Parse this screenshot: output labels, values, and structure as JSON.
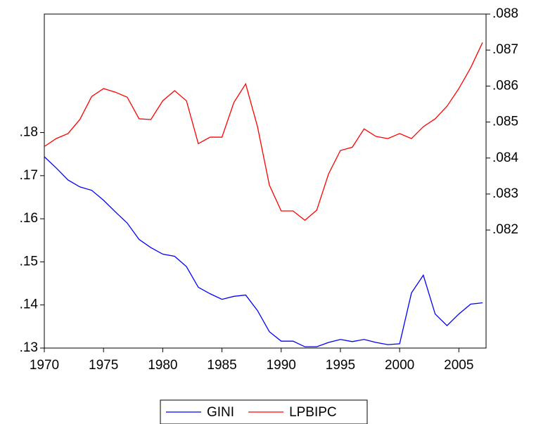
{
  "chart_data": {
    "type": "line",
    "x": [
      1970,
      1971,
      1972,
      1973,
      1974,
      1975,
      1976,
      1977,
      1978,
      1979,
      1980,
      1981,
      1982,
      1983,
      1984,
      1985,
      1986,
      1987,
      1988,
      1989,
      1990,
      1991,
      1992,
      1993,
      1994,
      1995,
      1996,
      1997,
      1998,
      1999,
      2000,
      2001,
      2002,
      2003,
      2004,
      2005,
      2006,
      2007
    ],
    "xlim": [
      1970,
      2007
    ],
    "xticks": [
      1970,
      1975,
      1980,
      1985,
      1990,
      1995,
      2000,
      2005
    ],
    "ylim": [
      0.13,
      0.2075
    ],
    "yticks": [
      {
        "value": 0.13,
        "label": ".13"
      },
      {
        "value": 0.14,
        "label": ".14"
      },
      {
        "value": 0.15,
        "label": ".15"
      },
      {
        "value": 0.16,
        "label": ".16"
      },
      {
        "value": 0.17,
        "label": ".17"
      },
      {
        "value": 0.18,
        "label": ".18"
      }
    ],
    "y2lim": [
      0.07872,
      0.088
    ],
    "y2ticks": [
      {
        "value": 0.082,
        "label": ".082"
      },
      {
        "value": 0.083,
        "label": ".083"
      },
      {
        "value": 0.084,
        "label": ".084"
      },
      {
        "value": 0.085,
        "label": ".085"
      },
      {
        "value": 0.086,
        "label": ".086"
      },
      {
        "value": 0.087,
        "label": ".087"
      },
      {
        "value": 0.088,
        "label": ".088"
      }
    ],
    "legend": "bottom",
    "series": [
      {
        "name": "GINI",
        "color": "#0000ff",
        "values": [
          0.1744,
          0.1718,
          0.169,
          0.1674,
          0.1666,
          0.1643,
          0.1616,
          0.159,
          0.1552,
          0.1533,
          0.1518,
          0.1513,
          0.1489,
          0.1441,
          0.1426,
          0.1413,
          0.142,
          0.1423,
          0.1387,
          0.1338,
          0.1316,
          0.1316,
          0.1303,
          0.1303,
          0.1313,
          0.132,
          0.1315,
          0.132,
          0.1313,
          0.1308,
          0.131,
          0.1428,
          0.1469,
          0.1379,
          0.1352,
          0.1379,
          0.1402,
          0.1405
        ]
      },
      {
        "name": "LPBIPC",
        "color": "#ff0000",
        "axis": "y2",
        "values": [
          0.08432,
          0.08454,
          0.08468,
          0.08507,
          0.08571,
          0.08593,
          0.08583,
          0.08569,
          0.08509,
          0.08507,
          0.08559,
          0.08587,
          0.08559,
          0.0844,
          0.08458,
          0.08458,
          0.08554,
          0.08606,
          0.08487,
          0.08325,
          0.08253,
          0.08253,
          0.08227,
          0.08255,
          0.08356,
          0.08421,
          0.0843,
          0.08481,
          0.0846,
          0.08454,
          0.08468,
          0.08454,
          0.08487,
          0.08509,
          0.08544,
          0.08593,
          0.08651,
          0.08721
        ]
      }
    ]
  }
}
